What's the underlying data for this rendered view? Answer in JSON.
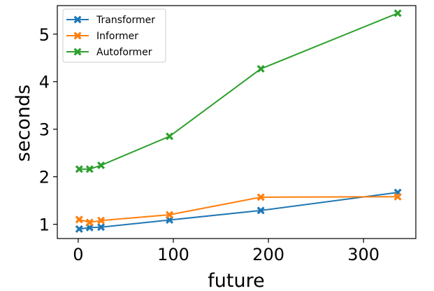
{
  "chart_data": {
    "type": "line",
    "xlabel": "future",
    "ylabel": "seconds",
    "xlim": [
      -22,
      355
    ],
    "ylim": [
      0.7,
      5.6
    ],
    "xticks": [
      0,
      100,
      200,
      300
    ],
    "yticks": [
      1,
      2,
      3,
      4,
      5
    ],
    "grid": false,
    "legend_placement": "top-left",
    "marker": "X",
    "x": [
      1,
      12,
      24,
      96,
      192,
      336
    ],
    "series": [
      {
        "name": "Transformer",
        "color": "#1f77b4",
        "values": [
          0.9,
          0.93,
          0.94,
          1.09,
          1.29,
          1.67
        ]
      },
      {
        "name": "Informer",
        "color": "#ff7f0e",
        "values": [
          1.1,
          1.04,
          1.08,
          1.2,
          1.57,
          1.58
        ]
      },
      {
        "name": "Autoformer",
        "color": "#2ca02c",
        "values": [
          2.16,
          2.16,
          2.24,
          2.85,
          4.27,
          5.44
        ]
      }
    ]
  }
}
